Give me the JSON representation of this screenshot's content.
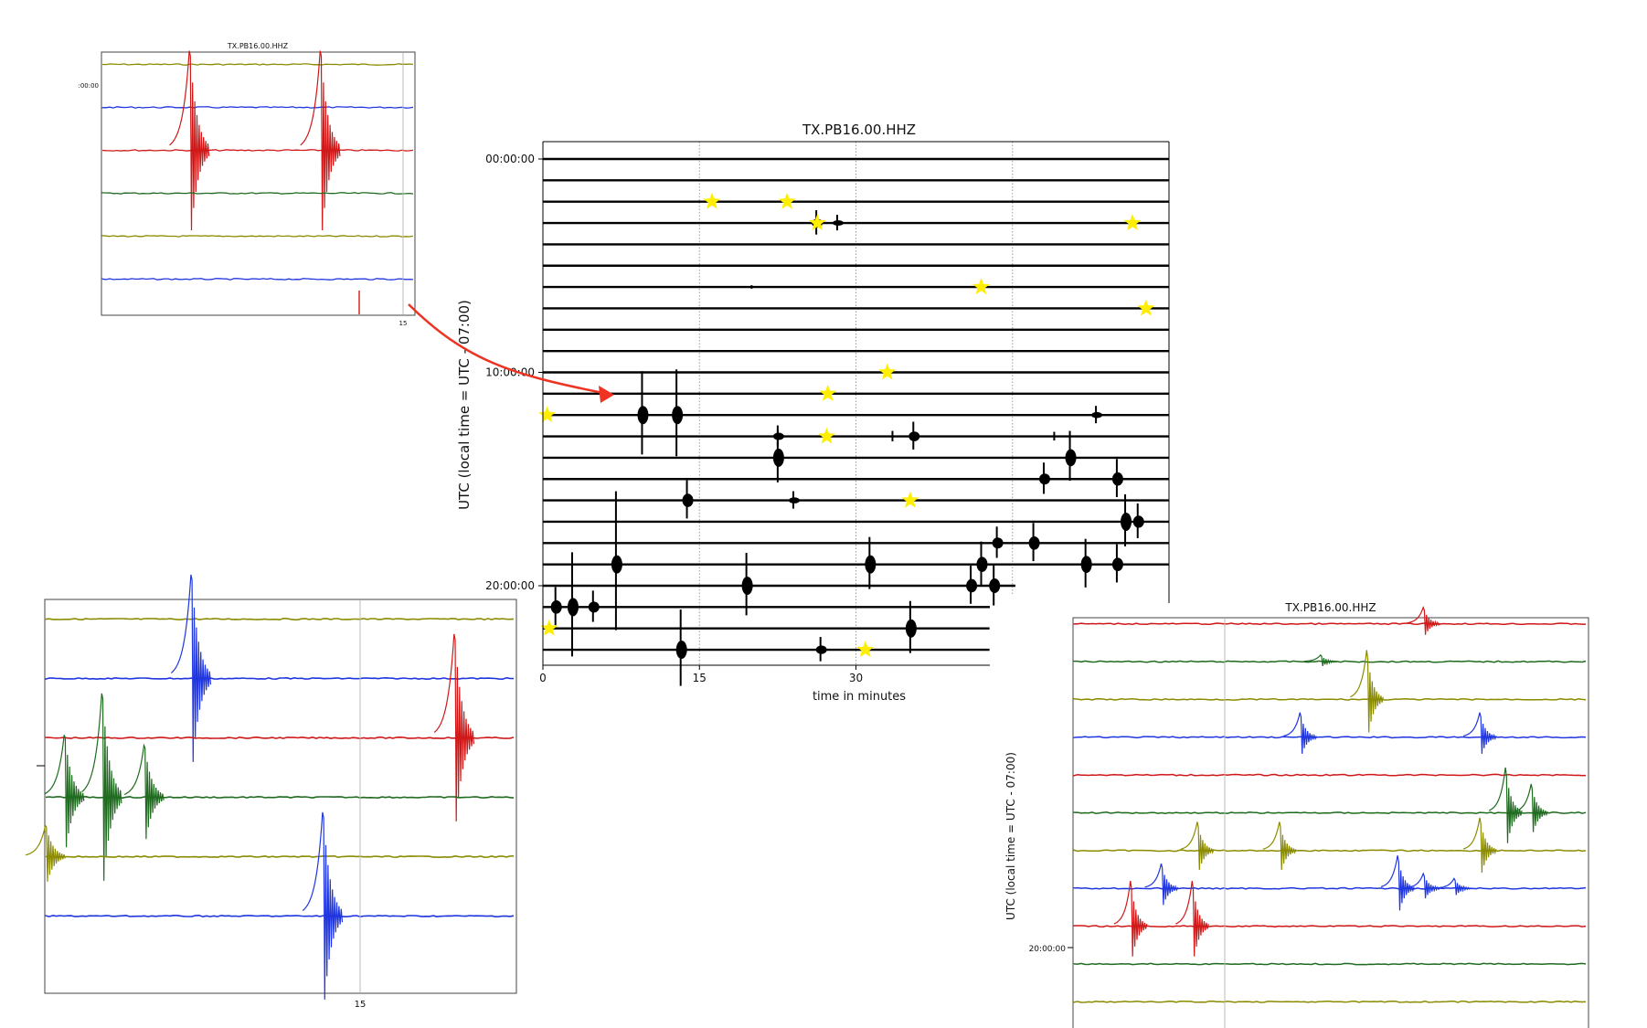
{
  "chart_data": [
    {
      "type": "line",
      "panel": "main",
      "title": "TX.PB16.00.HHZ",
      "xlabel": "time in minutes",
      "ylabel": "UTC (local time = UTC - 07:00)",
      "xlim": [
        0,
        60
      ],
      "xticks": [
        0,
        15,
        30
      ],
      "yticks": [
        "00:00:00",
        "10:00:00",
        "20:00:00"
      ],
      "rows": 24,
      "grid": "dotted vertical at 15, 30, 45",
      "trace_color": "#000000",
      "stars": [
        {
          "hour": 2,
          "minute": 16.2
        },
        {
          "hour": 2,
          "minute": 23.4
        },
        {
          "hour": 3,
          "minute": 26.3
        },
        {
          "hour": 3,
          "minute": 56.5
        },
        {
          "hour": 6,
          "minute": 42.0
        },
        {
          "hour": 7,
          "minute": 57.8
        },
        {
          "hour": 10,
          "minute": 33.0
        },
        {
          "hour": 11,
          "minute": 27.3
        },
        {
          "hour": 12,
          "minute": 0.4
        },
        {
          "hour": 13,
          "minute": 27.2
        },
        {
          "hour": 16,
          "minute": 35.2
        },
        {
          "hour": 22,
          "minute": 0.6
        },
        {
          "hour": 23,
          "minute": 30.9
        }
      ],
      "events": [
        {
          "hour": 3,
          "minute": 26.2,
          "amp": 14
        },
        {
          "hour": 3,
          "minute": 28.2,
          "amp": 9
        },
        {
          "hour": 6,
          "minute": 20.0,
          "amp": 2
        },
        {
          "hour": 12,
          "minute": 9.5,
          "amp": 48
        },
        {
          "hour": 12,
          "minute": 12.8,
          "amp": 50
        },
        {
          "hour": 12,
          "minute": 53.0,
          "amp": 10
        },
        {
          "hour": 13,
          "minute": 22.5,
          "amp": 12
        },
        {
          "hour": 13,
          "minute": 33.5,
          "amp": 6
        },
        {
          "hour": 13,
          "minute": 35.5,
          "amp": 16
        },
        {
          "hour": 13,
          "minute": 49.0,
          "amp": 5
        },
        {
          "hour": 13,
          "minute": 50.5,
          "amp": 6
        },
        {
          "hour": 14,
          "minute": 22.5,
          "amp": 30
        },
        {
          "hour": 14,
          "minute": 50.5,
          "amp": 28
        },
        {
          "hour": 15,
          "minute": 48.0,
          "amp": 18
        },
        {
          "hour": 15,
          "minute": 55.0,
          "amp": 22
        },
        {
          "hour": 16,
          "minute": 13.8,
          "amp": 22
        },
        {
          "hour": 16,
          "minute": 24.0,
          "amp": 10
        },
        {
          "hour": 17,
          "minute": 55.8,
          "amp": 30
        },
        {
          "hour": 17,
          "minute": 57.0,
          "amp": 20
        },
        {
          "hour": 18,
          "minute": 43.5,
          "amp": 18
        },
        {
          "hour": 18,
          "minute": 47.0,
          "amp": 22
        },
        {
          "hour": 19,
          "minute": 7.0,
          "amp": 80
        },
        {
          "hour": 19,
          "minute": 31.3,
          "amp": 30
        },
        {
          "hour": 19,
          "minute": 42.0,
          "amp": 25
        },
        {
          "hour": 19,
          "minute": 52.0,
          "amp": 28
        },
        {
          "hour": 19,
          "minute": 55.0,
          "amp": 22
        },
        {
          "hour": 20,
          "minute": 19.5,
          "amp": 36
        },
        {
          "hour": 20,
          "minute": 41.0,
          "amp": 22
        },
        {
          "hour": 20,
          "minute": 43.2,
          "amp": 24
        },
        {
          "hour": 21,
          "minute": 1.2,
          "amp": 22
        },
        {
          "hour": 21,
          "minute": 2.8,
          "amp": 60
        },
        {
          "hour": 21,
          "minute": 4.8,
          "amp": 18
        },
        {
          "hour": 22,
          "minute": 35.2,
          "amp": 30
        },
        {
          "hour": 23,
          "minute": 13.2,
          "amp": 44
        },
        {
          "hour": 23,
          "minute": 26.6,
          "amp": 14
        }
      ]
    },
    {
      "type": "line",
      "panel": "top-left inset",
      "title": "TX.PB16.00.HHZ",
      "yticks": [
        ":00:00"
      ],
      "xticks": [
        "15"
      ],
      "traces": [
        {
          "color": "#8b8b00",
          "spikes": []
        },
        {
          "color": "#1f35e0",
          "spikes": []
        },
        {
          "color": "#d01818",
          "spikes": [
            {
              "x": 0.28,
              "amp": 100
            },
            {
              "x": 0.7,
              "amp": 100
            }
          ]
        },
        {
          "color": "#1f6b1f",
          "spikes": []
        },
        {
          "color": "#8b8b00",
          "spikes": []
        },
        {
          "color": "#1f35e0",
          "spikes": []
        }
      ]
    },
    {
      "type": "line",
      "panel": "bottom-left inset",
      "xticks": [
        "15"
      ],
      "traces": [
        {
          "color": "#8b8b00",
          "spikes": []
        },
        {
          "color": "#1f35e0",
          "spikes": [
            {
              "x": 0.31,
              "amp": 100
            }
          ]
        },
        {
          "color": "#d01818",
          "spikes": [
            {
              "x": 0.87,
              "amp": 100
            }
          ]
        },
        {
          "color": "#1f6b1f",
          "spikes": [
            {
              "x": 0.04,
              "amp": 60
            },
            {
              "x": 0.12,
              "amp": 100
            },
            {
              "x": 0.21,
              "amp": 50
            }
          ]
        },
        {
          "color": "#8b8b00",
          "spikes": [
            {
              "x": 0.0,
              "amp": 30
            }
          ]
        },
        {
          "color": "#1f35e0",
          "spikes": [
            {
              "x": 0.59,
              "amp": 100
            }
          ]
        }
      ]
    },
    {
      "type": "line",
      "panel": "bottom-right inset",
      "title": "TX.PB16.00.HHZ",
      "ylabel": "UTC (local time = UTC - 07:00)",
      "yticks": [
        "20:00:00"
      ],
      "traces": [
        {
          "color": "#d01818",
          "spikes": [
            {
              "x": 0.68,
              "amp": 20
            }
          ]
        },
        {
          "color": "#1f6b1f",
          "spikes": [
            {
              "x": 0.48,
              "amp": 8
            }
          ]
        },
        {
          "color": "#8b8b00",
          "spikes": [
            {
              "x": 0.57,
              "amp": 60
            }
          ]
        },
        {
          "color": "#1f35e0",
          "spikes": [
            {
              "x": 0.44,
              "amp": 30
            },
            {
              "x": 0.79,
              "amp": 30
            }
          ]
        },
        {
          "color": "#d01818",
          "spikes": []
        },
        {
          "color": "#1f6b1f",
          "spikes": [
            {
              "x": 0.84,
              "amp": 55
            },
            {
              "x": 0.89,
              "amp": 35
            }
          ]
        },
        {
          "color": "#8b8b00",
          "spikes": [
            {
              "x": 0.24,
              "amp": 35
            },
            {
              "x": 0.4,
              "amp": 35
            },
            {
              "x": 0.79,
              "amp": 40
            }
          ]
        },
        {
          "color": "#1f35e0",
          "spikes": [
            {
              "x": 0.17,
              "amp": 30
            },
            {
              "x": 0.63,
              "amp": 40
            },
            {
              "x": 0.68,
              "amp": 18
            },
            {
              "x": 0.74,
              "amp": 12
            }
          ]
        },
        {
          "color": "#d01818",
          "spikes": [
            {
              "x": 0.11,
              "amp": 55
            },
            {
              "x": 0.23,
              "amp": 55
            }
          ]
        },
        {
          "color": "#1f6b1f",
          "spikes": []
        },
        {
          "color": "#8b8b00",
          "spikes": []
        }
      ]
    }
  ]
}
